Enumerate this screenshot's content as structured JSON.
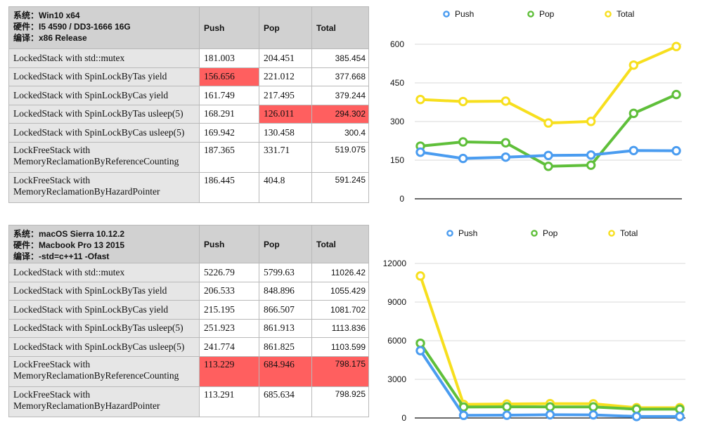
{
  "tables": [
    {
      "sys_lines": [
        "系统：Win10 x64",
        "硬件：I5 4590 / DD3-1666 16G",
        "编译：x86 Release"
      ],
      "headers": [
        "Push",
        "Pop",
        "Total"
      ],
      "rows": [
        {
          "name": [
            "LockedStack with std::mutex"
          ],
          "push": "181.003",
          "pop": "204.451",
          "total": "385.454",
          "hl": []
        },
        {
          "name": [
            "LockedStack with SpinLockByTas yield"
          ],
          "push": "156.656",
          "pop": "221.012",
          "total": "377.668",
          "hl": [
            "push"
          ]
        },
        {
          "name": [
            "LockedStack with SpinLockByCas yield"
          ],
          "push": "161.749",
          "pop": "217.495",
          "total": "379.244",
          "hl": []
        },
        {
          "name": [
            "LockedStack with SpinLockByTas usleep(5)"
          ],
          "push": "168.291",
          "pop": "126.011",
          "total": "294.302",
          "hl": [
            "pop",
            "total"
          ]
        },
        {
          "name": [
            "LockedStack with SpinLockByCas usleep(5)"
          ],
          "push": "169.942",
          "pop": "130.458",
          "total": "300.4",
          "hl": []
        },
        {
          "name": [
            "LockFreeStack with",
            "MemoryReclamationByReferenceCounting"
          ],
          "push": "187.365",
          "pop": "331.71",
          "total": "519.075",
          "hl": []
        },
        {
          "name": [
            "LockFreeStack with",
            "MemoryReclamationByHazardPointer"
          ],
          "push": "186.445",
          "pop": "404.8",
          "total": "591.245",
          "hl": []
        }
      ]
    },
    {
      "sys_lines": [
        "系统：macOS Sierra 10.12.2",
        "硬件：Macbook Pro 13 2015",
        "编译：-std=c++11 -Ofast"
      ],
      "headers": [
        "Push",
        "Pop",
        "Total"
      ],
      "rows": [
        {
          "name": [
            "LockedStack with std::mutex"
          ],
          "push": "5226.79",
          "pop": "5799.63",
          "total": "11026.42",
          "hl": []
        },
        {
          "name": [
            "LockedStack with SpinLockByTas yield"
          ],
          "push": "206.533",
          "pop": "848.896",
          "total": "1055.429",
          "hl": []
        },
        {
          "name": [
            "LockedStack with SpinLockByCas yield"
          ],
          "push": "215.195",
          "pop": "866.507",
          "total": "1081.702",
          "hl": []
        },
        {
          "name": [
            "LockedStack with SpinLockByTas usleep(5)"
          ],
          "push": "251.923",
          "pop": "861.913",
          "total": "1113.836",
          "hl": []
        },
        {
          "name": [
            "LockedStack with SpinLockByCas usleep(5)"
          ],
          "push": "241.774",
          "pop": "861.825",
          "total": "1103.599",
          "hl": []
        },
        {
          "name": [
            "LockFreeStack with",
            "MemoryReclamationByReferenceCounting"
          ],
          "push": "113.229",
          "pop": "684.946",
          "total": "798.175",
          "hl": [
            "push",
            "pop",
            "total"
          ]
        },
        {
          "name": [
            "LockFreeStack with",
            "MemoryReclamationByHazardPointer"
          ],
          "push": "113.291",
          "pop": "685.634",
          "total": "798.925",
          "hl": []
        }
      ]
    }
  ],
  "chart_data": [
    {
      "type": "line",
      "title": "",
      "xlabel": "",
      "ylabel": "",
      "ylim": [
        0,
        600
      ],
      "yticks": [
        "0",
        "150",
        "300",
        "450",
        "600"
      ],
      "grid": true,
      "legend_position": "top",
      "categories": [
        "LockedStack with std::mutex",
        "LockedStack with SpinLockByTas yield",
        "LockedStack with SpinLockByCas yield",
        "LockedStack with SpinLockByTas usleep(5)",
        "LockedStack with SpinLockByCas usleep(5)",
        "LockFreeStack with MemoryReclamationByReferenceCounting",
        "LockFreeStack with MemoryReclamationByHazardPointer"
      ],
      "series": [
        {
          "name": "Push",
          "color": "#4a9cf0",
          "values": [
            181.003,
            156.656,
            161.749,
            168.291,
            169.942,
            187.365,
            186.445
          ]
        },
        {
          "name": "Pop",
          "color": "#5fbf3a",
          "values": [
            204.451,
            221.012,
            217.495,
            126.011,
            130.458,
            331.71,
            404.8
          ]
        },
        {
          "name": "Total",
          "color": "#f7df1e",
          "values": [
            385.454,
            377.668,
            379.244,
            294.302,
            300.4,
            519.075,
            591.245
          ]
        }
      ]
    },
    {
      "type": "line",
      "title": "",
      "xlabel": "",
      "ylabel": "",
      "ylim": [
        0,
        12000
      ],
      "yticks": [
        "0",
        "3000",
        "6000",
        "9000",
        "12000"
      ],
      "grid": true,
      "legend_position": "top",
      "categories": [
        "LockedStack with std::mutex",
        "LockedStack with SpinLockByTas yield",
        "LockedStack with SpinLockByCas yield",
        "LockedStack with SpinLockByTas usleep(5)",
        "LockedStack with SpinLockByCas usleep(5)",
        "LockFreeStack with MemoryReclamationByReferenceCounting",
        "LockFreeStack with MemoryReclamationByHazardPointer"
      ],
      "series": [
        {
          "name": "Push",
          "color": "#4a9cf0",
          "values": [
            5226.79,
            206.533,
            215.195,
            251.923,
            241.774,
            113.229,
            113.291
          ]
        },
        {
          "name": "Pop",
          "color": "#5fbf3a",
          "values": [
            5799.63,
            848.896,
            866.507,
            861.913,
            861.825,
            684.946,
            685.634
          ]
        },
        {
          "name": "Total",
          "color": "#f7df1e",
          "values": [
            11026.42,
            1055.429,
            1081.702,
            1113.836,
            1103.599,
            798.175,
            798.925
          ]
        }
      ]
    }
  ]
}
